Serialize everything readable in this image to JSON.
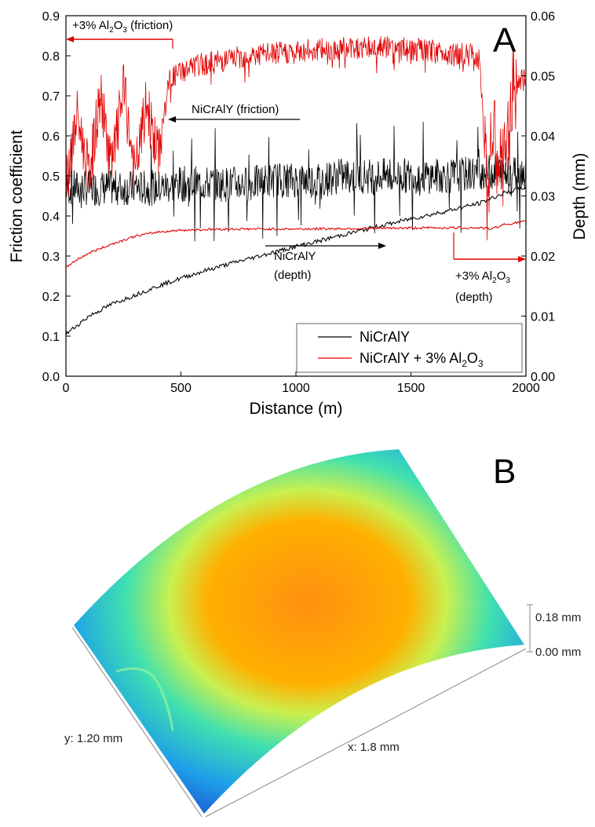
{
  "panel_a": {
    "label": "A",
    "xlabel": "Distance (m)",
    "ylabel_left": "Friction coefficient",
    "ylabel_right": "Depth (mm)",
    "x_ticks": [
      "0",
      "500",
      "1000",
      "1500",
      "2000"
    ],
    "y_left_ticks": [
      "0.0",
      "0.1",
      "0.2",
      "0.3",
      "0.4",
      "0.5",
      "0.6",
      "0.7",
      "0.8",
      "0.9"
    ],
    "y_right_ticks": [
      "0.00",
      "0.01",
      "0.02",
      "0.03",
      "0.04",
      "0.05",
      "0.06"
    ],
    "annotations": {
      "alumina_friction_prefix": "+3% Al",
      "alumina_friction_sub1": "2",
      "alumina_friction_o": "O",
      "alumina_friction_sub2": "3",
      "alumina_friction_suffix": " (friction)",
      "nicraly_friction": "NiCrAlY (friction)",
      "nicraly_depth_1": "NiCrAlY",
      "nicraly_depth_2": "(depth)",
      "alumina_depth_prefix": "+3% Al",
      "alumina_depth_sub1": "2",
      "alumina_depth_o": "O",
      "alumina_depth_sub2": "3",
      "alumina_depth_suffix": "(depth)"
    },
    "legend": {
      "entry1": "NiCrAlY",
      "entry2_prefix": "NiCrAlY + 3% Al",
      "entry2_sub1": "2",
      "entry2_o": "O",
      "entry2_sub2": "3"
    },
    "colors": {
      "nicraly": "#000000",
      "alumina": "#e00000"
    }
  },
  "panel_b": {
    "label": "B",
    "x_label": "x: 1.8 mm",
    "y_label": "y: 1.20 mm",
    "z_max_label": "0.18 mm",
    "z_min_label": "0.00 mm",
    "colormap": [
      "#1f2fc8",
      "#1ea0e8",
      "#3fe0b0",
      "#c8f050",
      "#ffd000",
      "#ff9010"
    ]
  },
  "chart_data": {
    "type": "line",
    "title": "",
    "xlabel": "Distance (m)",
    "ylabel": "Friction coefficient",
    "y2label": "Depth (mm)",
    "xlim": [
      0,
      2000
    ],
    "ylim": [
      0,
      0.9
    ],
    "y2lim": [
      0,
      0.06
    ],
    "legend_position": "bottom-right",
    "series": [
      {
        "name": "NiCrAlY",
        "axis": "left",
        "x": [
          0,
          100,
          200,
          300,
          400,
          500,
          600,
          700,
          800,
          900,
          1000,
          1100,
          1200,
          1300,
          1400,
          1500,
          1600,
          1700,
          1800,
          1900,
          2000
        ],
        "values": [
          0.47,
          0.47,
          0.47,
          0.47,
          0.47,
          0.48,
          0.48,
          0.48,
          0.48,
          0.49,
          0.49,
          0.49,
          0.5,
          0.5,
          0.5,
          0.5,
          0.5,
          0.5,
          0.51,
          0.51,
          0.51
        ]
      },
      {
        "name": "NiCrAlY + 3% Al2O3",
        "axis": "left",
        "x": [
          0,
          50,
          100,
          150,
          200,
          250,
          300,
          350,
          400,
          450,
          500,
          600,
          800,
          1000,
          1200,
          1400,
          1600,
          1800,
          1830,
          1850,
          1900,
          1950,
          2000
        ],
        "values": [
          0.48,
          0.65,
          0.5,
          0.7,
          0.52,
          0.72,
          0.5,
          0.68,
          0.55,
          0.74,
          0.76,
          0.78,
          0.8,
          0.81,
          0.82,
          0.82,
          0.81,
          0.8,
          0.45,
          0.6,
          0.5,
          0.73,
          0.74
        ]
      },
      {
        "name": "NiCrAlY (depth)",
        "axis": "right",
        "x": [
          0,
          100,
          200,
          300,
          400,
          500,
          600,
          700,
          800,
          900,
          1000,
          1100,
          1200,
          1300,
          1400,
          1500,
          1600,
          1700,
          1800,
          1900,
          2000
        ],
        "values": [
          0.007,
          0.01,
          0.012,
          0.0135,
          0.015,
          0.0163,
          0.0175,
          0.0186,
          0.0196,
          0.0206,
          0.0216,
          0.0225,
          0.0235,
          0.0244,
          0.0253,
          0.0262,
          0.027,
          0.0279,
          0.0288,
          0.0304,
          0.0315
        ]
      },
      {
        "name": "NiCrAlY + 3% Al2O3 (depth)",
        "axis": "right",
        "x": [
          0,
          30,
          100,
          200,
          300,
          400,
          500,
          700,
          1000,
          1300,
          1600,
          1800,
          1850,
          1900,
          2000
        ],
        "values": [
          0.018,
          0.019,
          0.0205,
          0.022,
          0.0233,
          0.024,
          0.0243,
          0.0245,
          0.0245,
          0.0246,
          0.0247,
          0.0247,
          0.0245,
          0.0252,
          0.0258
        ]
      }
    ]
  }
}
